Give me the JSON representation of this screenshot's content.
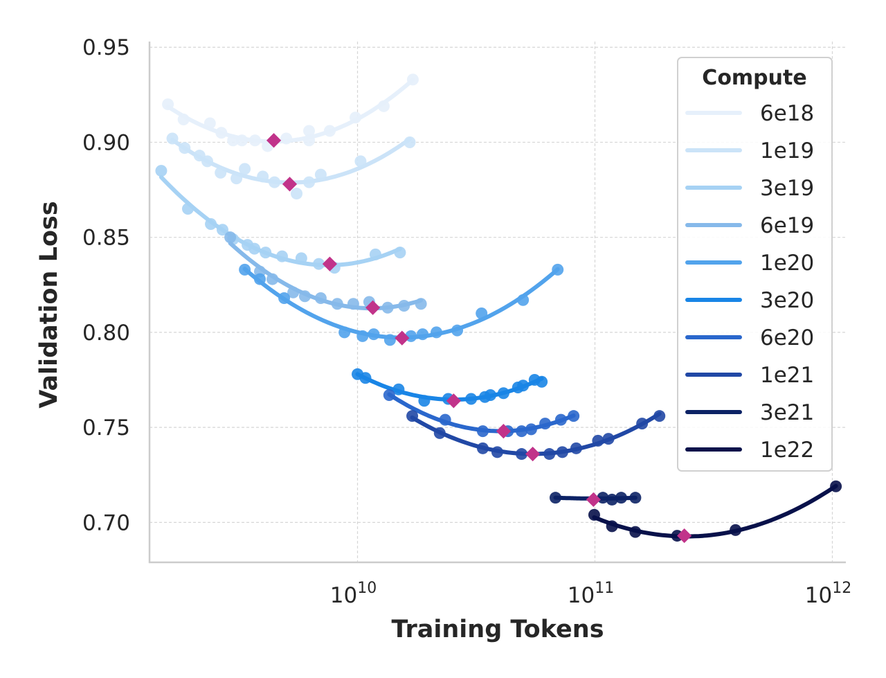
{
  "chart_data": {
    "type": "scatter",
    "title": "",
    "xlabel": "Training Tokens",
    "ylabel": "Validation Loss",
    "xscale": "log",
    "xlim": [
      1330000000.0,
      1140000000000.0
    ],
    "ylim": [
      0.679,
      0.953
    ],
    "grid": true,
    "xticks": [
      {
        "base": "10",
        "exp": "10",
        "value": 10000000000.0
      },
      {
        "base": "10",
        "exp": "11",
        "value": 100000000000.0
      },
      {
        "base": "10",
        "exp": "12",
        "value": 1000000000000.0
      }
    ],
    "yticks": [
      {
        "label": "0.70",
        "value": 0.7
      },
      {
        "label": "0.75",
        "value": 0.75
      },
      {
        "label": "0.80",
        "value": 0.8
      },
      {
        "label": "0.85",
        "value": 0.85
      },
      {
        "label": "0.90",
        "value": 0.9
      },
      {
        "label": "0.95",
        "value": 0.95
      }
    ],
    "legend": {
      "title": "Compute",
      "placement": "upper-right"
    },
    "optimum_marker_color": "#c1338a",
    "series": [
      {
        "name": "6e18",
        "color": "#e6f0fb",
        "points": [
          [
            1590000000.0,
            0.92
          ],
          [
            1850000000.0,
            0.912
          ],
          [
            2390000000.0,
            0.91
          ],
          [
            2670000000.0,
            0.905
          ],
          [
            2990000000.0,
            0.901
          ],
          [
            3260000000.0,
            0.901
          ],
          [
            3700000000.0,
            0.901
          ],
          [
            4180000000.0,
            0.898
          ],
          [
            5010000000.0,
            0.902
          ],
          [
            6250000000.0,
            0.906
          ],
          [
            6250000000.0,
            0.901
          ],
          [
            7640000000.0,
            0.906
          ],
          [
            9800000000.0,
            0.913
          ],
          [
            12900000000.0,
            0.919
          ],
          [
            17100000000.0,
            0.933
          ]
        ],
        "optimum": [
          4440000000.0,
          0.901
        ]
      },
      {
        "name": "1e19",
        "color": "#cbe3f8",
        "points": [
          [
            1660000000.0,
            0.902
          ],
          [
            1870000000.0,
            0.897
          ],
          [
            2160000000.0,
            0.893
          ],
          [
            2330000000.0,
            0.89
          ],
          [
            2650000000.0,
            0.884
          ],
          [
            3090000000.0,
            0.881
          ],
          [
            3350000000.0,
            0.886
          ],
          [
            3990000000.0,
            0.882
          ],
          [
            4470000000.0,
            0.879
          ],
          [
            5540000000.0,
            0.873
          ],
          [
            6250000000.0,
            0.879
          ],
          [
            7000000000.0,
            0.883
          ],
          [
            10300000000.0,
            0.89
          ],
          [
            16600000000.0,
            0.9
          ]
        ],
        "optimum": [
          5180000000.0,
          0.878
        ]
      },
      {
        "name": "3e19",
        "color": "#a6d2f4",
        "points": [
          [
            1490000000.0,
            0.885
          ],
          [
            1930000000.0,
            0.865
          ],
          [
            2410000000.0,
            0.857
          ],
          [
            2700000000.0,
            0.854
          ],
          [
            2990000000.0,
            0.849
          ],
          [
            3440000000.0,
            0.846
          ],
          [
            3680000000.0,
            0.844
          ],
          [
            4100000000.0,
            0.842
          ],
          [
            4810000000.0,
            0.84
          ],
          [
            5800000000.0,
            0.839
          ],
          [
            6870000000.0,
            0.836
          ],
          [
            8000000000.0,
            0.834
          ],
          [
            11900000000.0,
            0.841
          ],
          [
            15100000000.0,
            0.842
          ]
        ],
        "optimum": [
          7640000000.0,
          0.836
        ]
      },
      {
        "name": "6e19",
        "color": "#86b9ea",
        "points": [
          [
            2910000000.0,
            0.85
          ],
          [
            3880000000.0,
            0.832
          ],
          [
            4380000000.0,
            0.828
          ],
          [
            5360000000.0,
            0.821
          ],
          [
            6000000000.0,
            0.819
          ],
          [
            7000000000.0,
            0.818
          ],
          [
            8220000000.0,
            0.815
          ],
          [
            9600000000.0,
            0.815
          ],
          [
            11200000000.0,
            0.816
          ],
          [
            13400000000.0,
            0.813
          ],
          [
            15700000000.0,
            0.814
          ],
          [
            18500000000.0,
            0.815
          ]
        ],
        "optimum": [
          11600000000.0,
          0.813
        ]
      },
      {
        "name": "1e20",
        "color": "#52a3ec",
        "points": [
          [
            3350000000.0,
            0.833
          ],
          [
            3880000000.0,
            0.828
          ],
          [
            4910000000.0,
            0.818
          ],
          [
            8810000000.0,
            0.8
          ],
          [
            10500000000.0,
            0.798
          ],
          [
            11700000000.0,
            0.799
          ],
          [
            13700000000.0,
            0.796
          ],
          [
            16800000000.0,
            0.798
          ],
          [
            18800000000.0,
            0.799
          ],
          [
            21500000000.0,
            0.8
          ],
          [
            26300000000.0,
            0.801
          ],
          [
            33300000000.0,
            0.81
          ],
          [
            49800000000.0,
            0.817
          ],
          [
            69700000000.0,
            0.833
          ]
        ],
        "optimum": [
          15400000000.0,
          0.797
        ]
      },
      {
        "name": "3e20",
        "color": "#1985e6",
        "points": [
          [
            10000000000.0,
            0.778
          ],
          [
            10800000000.0,
            0.776
          ],
          [
            14900000000.0,
            0.77
          ],
          [
            19100000000.0,
            0.764
          ],
          [
            24100000000.0,
            0.765
          ],
          [
            30100000000.0,
            0.765
          ],
          [
            34400000000.0,
            0.766
          ],
          [
            36300000000.0,
            0.767
          ],
          [
            41200000000.0,
            0.768
          ],
          [
            47400000000.0,
            0.771
          ],
          [
            49800000000.0,
            0.772
          ],
          [
            55700000000.0,
            0.775
          ],
          [
            59700000000.0,
            0.774
          ]
        ],
        "optimum": [
          25400000000.0,
          0.764
        ]
      },
      {
        "name": "6e20",
        "color": "#2a67cc",
        "points": [
          [
            13600000000.0,
            0.767
          ],
          [
            23400000000.0,
            0.754
          ],
          [
            33700000000.0,
            0.748
          ],
          [
            43000000000.0,
            0.748
          ],
          [
            49100000000.0,
            0.748
          ],
          [
            53900000000.0,
            0.749
          ],
          [
            61700000000.0,
            0.752
          ],
          [
            71900000000.0,
            0.754
          ],
          [
            81300000000.0,
            0.756
          ]
        ],
        "optimum": [
          41200000000.0,
          0.748
        ]
      },
      {
        "name": "1e21",
        "color": "#2148a5",
        "points": [
          [
            17000000000.0,
            0.756
          ],
          [
            22200000000.0,
            0.747
          ],
          [
            33700000000.0,
            0.739
          ],
          [
            38800000000.0,
            0.737
          ],
          [
            49100000000.0,
            0.736
          ],
          [
            64300000000.0,
            0.736
          ],
          [
            72900000000.0,
            0.737
          ],
          [
            83400000000.0,
            0.739
          ],
          [
            103000000000.0,
            0.743
          ],
          [
            114000000000.0,
            0.744
          ],
          [
            158000000000.0,
            0.752
          ],
          [
            187000000000.0,
            0.756
          ]
        ],
        "optimum": [
          54700000000.0,
          0.736
        ]
      },
      {
        "name": "3e21",
        "color": "#0c2265",
        "points": [
          [
            68200000000.0,
            0.713
          ],
          [
            108000000000.0,
            0.713
          ],
          [
            118000000000.0,
            0.712
          ],
          [
            129000000000.0,
            0.713
          ],
          [
            148000000000.0,
            0.713
          ]
        ],
        "optimum": [
          98600000000.0,
          0.712
        ]
      },
      {
        "name": "1e22",
        "color": "#08114a",
        "points": [
          [
            99300000000.0,
            0.704
          ],
          [
            118000000000.0,
            0.698
          ],
          [
            148000000000.0,
            0.695
          ],
          [
            222000000000.0,
            0.693
          ],
          [
            391000000000.0,
            0.696
          ],
          [
            1035000000000.0,
            0.719
          ]
        ],
        "optimum": [
          238000000000.0,
          0.693
        ]
      }
    ]
  }
}
